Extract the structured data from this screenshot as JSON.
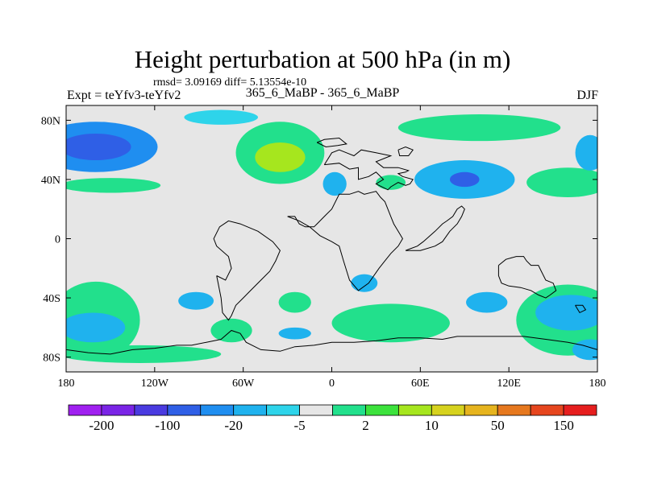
{
  "chart_data": {
    "type": "heatmap",
    "title": "Height perturbation at 500 hPa (in m)",
    "stats_text": "rmsd= 3.09169 diff= 5.13554e-10",
    "expt_label": "Expt = teYfv3-teYfv2",
    "subtitle": "365_6_MaBP - 365_6_MaBP",
    "season": "DJF",
    "xlim": [
      -180,
      180
    ],
    "ylim": [
      -90,
      90
    ],
    "x_ticks": [
      {
        "value": -180,
        "label": "180"
      },
      {
        "value": -120,
        "label": "120W"
      },
      {
        "value": -60,
        "label": "60W"
      },
      {
        "value": 0,
        "label": "0"
      },
      {
        "value": 60,
        "label": "60E"
      },
      {
        "value": 120,
        "label": "120E"
      },
      {
        "value": 180,
        "label": "180"
      }
    ],
    "y_ticks": [
      {
        "value": 80,
        "label": "80N"
      },
      {
        "value": 40,
        "label": "40N"
      },
      {
        "value": 0,
        "label": "0"
      },
      {
        "value": -40,
        "label": "40S"
      },
      {
        "value": -80,
        "label": "80S"
      }
    ],
    "colorbar": {
      "colors": [
        "#a020f0",
        "#7a24e6",
        "#4a3be0",
        "#2f5fe6",
        "#1f8ef0",
        "#1fb2ee",
        "#2ed4ea",
        "#e6e6e6",
        "#22e08c",
        "#3ce23c",
        "#a6e61e",
        "#d6d21e",
        "#e6b41e",
        "#e6781e",
        "#e6461e",
        "#e61e1e"
      ],
      "labels": [
        "-200",
        "-100",
        "-20",
        "-5",
        "2",
        "10",
        "50",
        "150"
      ]
    },
    "regions": [
      {
        "name": "north-pacific-low",
        "lon": -160,
        "lat": 62,
        "rlon": 42,
        "rlat": 17,
        "value": -12
      },
      {
        "name": "north-pacific-low-core",
        "lon": -160,
        "lat": 62,
        "rlon": 24,
        "rlat": 9,
        "value": -20
      },
      {
        "name": "north-pacific-band",
        "lon": -150,
        "lat": 36,
        "rlon": 34,
        "rlat": 5,
        "value": 4
      },
      {
        "name": "north-america-high",
        "lon": -35,
        "lat": 58,
        "rlon": 30,
        "rlat": 21,
        "value": 8
      },
      {
        "name": "north-america-high-core",
        "lon": -35,
        "lat": 55,
        "rlon": 17,
        "rlat": 10,
        "value": 20
      },
      {
        "name": "arctic-low",
        "lon": -75,
        "lat": 82,
        "rlon": 25,
        "rlat": 5,
        "value": -3
      },
      {
        "name": "eurasia-high",
        "lon": 100,
        "lat": 75,
        "rlon": 55,
        "rlat": 9,
        "value": 5
      },
      {
        "name": "asia-low",
        "lon": 90,
        "lat": 40,
        "rlon": 34,
        "rlat": 13,
        "value": -8
      },
      {
        "name": "asia-low-core",
        "lon": 90,
        "lat": 40,
        "rlon": 10,
        "rlat": 5,
        "value": -20
      },
      {
        "name": "europe-low",
        "lon": 2,
        "lat": 37,
        "rlon": 8,
        "rlat": 8,
        "value": -5
      },
      {
        "name": "europe-band",
        "lon": 40,
        "lat": 38,
        "rlon": 10,
        "rlat": 5,
        "value": 4
      },
      {
        "name": "west-pacific-band",
        "lon": 160,
        "lat": 38,
        "rlon": 28,
        "rlat": 10,
        "value": 4
      },
      {
        "name": "west-pacific-low",
        "lon": 175,
        "lat": 58,
        "rlon": 10,
        "rlat": 12,
        "value": -6
      },
      {
        "name": "south-pacific-band",
        "lon": -160,
        "lat": -55,
        "rlon": 30,
        "rlat": 26,
        "value": 4
      },
      {
        "name": "south-pacific-low",
        "lon": -162,
        "lat": -60,
        "rlon": 22,
        "rlat": 10,
        "value": -6
      },
      {
        "name": "sw-pacific-low",
        "lon": -92,
        "lat": -42,
        "rlon": 12,
        "rlat": 6,
        "value": -5
      },
      {
        "name": "south-america-band",
        "lon": -68,
        "lat": -62,
        "rlon": 14,
        "rlat": 8,
        "value": 4
      },
      {
        "name": "south-atlantic-high",
        "lon": -25,
        "lat": -43,
        "rlon": 11,
        "rlat": 7,
        "value": 4
      },
      {
        "name": "south-atlantic-low",
        "lon": -25,
        "lat": -64,
        "rlon": 11,
        "rlat": 4,
        "value": -6
      },
      {
        "name": "africa-low",
        "lon": 22,
        "lat": -30,
        "rlon": 9,
        "rlat": 6,
        "value": -5
      },
      {
        "name": "indian-ocean-band",
        "lon": 40,
        "lat": -57,
        "rlon": 40,
        "rlat": 13,
        "value": 5
      },
      {
        "name": "indian-ocean-low",
        "lon": 105,
        "lat": -43,
        "rlon": 14,
        "rlat": 7,
        "value": -5
      },
      {
        "name": "southern-ocean-band",
        "lon": 160,
        "lat": -55,
        "rlon": 35,
        "rlat": 24,
        "value": 4
      },
      {
        "name": "southern-ocean-low",
        "lon": 162,
        "lat": -50,
        "rlon": 24,
        "rlat": 12,
        "value": -8
      },
      {
        "name": "antarctic-band",
        "lon": -130,
        "lat": -78,
        "rlon": 55,
        "rlat": 6,
        "value": 4
      },
      {
        "name": "antarctic-low-east",
        "lon": 175,
        "lat": -75,
        "rlon": 12,
        "rlat": 7,
        "value": -5
      }
    ],
    "coastlines": [
      {
        "name": "eurasia-outline",
        "points": [
          [
            -5,
            50
          ],
          [
            5,
            51
          ],
          [
            12,
            47
          ],
          [
            18,
            48
          ],
          [
            18,
            40
          ],
          [
            25,
            42
          ],
          [
            30,
            45
          ],
          [
            35,
            40
          ],
          [
            30,
            37
          ],
          [
            38,
            33
          ],
          [
            40,
            35
          ],
          [
            45,
            38
          ],
          [
            50,
            36
          ],
          [
            53,
            37
          ],
          [
            55,
            40
          ],
          [
            48,
            42
          ],
          [
            45,
            44
          ],
          [
            50,
            45
          ],
          [
            52,
            46
          ],
          [
            45,
            48
          ],
          [
            35,
            48
          ],
          [
            30,
            52
          ],
          [
            40,
            56
          ],
          [
            30,
            58
          ],
          [
            20,
            60
          ],
          [
            15,
            56
          ],
          [
            10,
            58
          ],
          [
            5,
            60
          ],
          [
            0,
            58
          ],
          [
            -5,
            50
          ]
        ]
      },
      {
        "name": "north-africa-outline",
        "points": [
          [
            -30,
            15
          ],
          [
            -25,
            15
          ],
          [
            -22,
            10
          ],
          [
            -18,
            8
          ],
          [
            -12,
            8
          ],
          [
            -10,
            10
          ],
          [
            -5,
            15
          ],
          [
            0,
            20
          ],
          [
            5,
            30
          ],
          [
            12,
            30
          ],
          [
            18,
            32
          ],
          [
            22,
            30
          ],
          [
            30,
            32
          ],
          [
            33,
            28
          ],
          [
            36,
            25
          ],
          [
            40,
            15
          ],
          [
            42,
            10
          ],
          [
            45,
            5
          ],
          [
            48,
            0
          ],
          [
            45,
            -5
          ],
          [
            40,
            -10
          ],
          [
            36,
            -15
          ],
          [
            32,
            -20
          ],
          [
            25,
            -30
          ],
          [
            18,
            -35
          ],
          [
            12,
            -28
          ],
          [
            8,
            -15
          ],
          [
            5,
            -5
          ],
          [
            0,
            -2
          ],
          [
            -8,
            2
          ],
          [
            -15,
            8
          ],
          [
            -22,
            12
          ],
          [
            -30,
            15
          ]
        ]
      },
      {
        "name": "south-america-outline",
        "points": [
          [
            -78,
            -25
          ],
          [
            -72,
            -28
          ],
          [
            -68,
            -20
          ],
          [
            -70,
            -12
          ],
          [
            -78,
            -5
          ],
          [
            -80,
            0
          ],
          [
            -76,
            8
          ],
          [
            -70,
            12
          ],
          [
            -62,
            10
          ],
          [
            -50,
            5
          ],
          [
            -40,
            -2
          ],
          [
            -35,
            -8
          ],
          [
            -38,
            -15
          ],
          [
            -42,
            -22
          ],
          [
            -48,
            -28
          ],
          [
            -55,
            -35
          ],
          [
            -60,
            -40
          ],
          [
            -65,
            -45
          ],
          [
            -68,
            -52
          ],
          [
            -70,
            -55
          ],
          [
            -74,
            -50
          ],
          [
            -75,
            -40
          ],
          [
            -78,
            -25
          ]
        ]
      },
      {
        "name": "india-outline",
        "points": [
          [
            50,
            -8
          ],
          [
            58,
            -5
          ],
          [
            62,
            -2
          ],
          [
            70,
            5
          ],
          [
            75,
            10
          ],
          [
            78,
            12
          ],
          [
            82,
            15
          ],
          [
            85,
            20
          ],
          [
            88,
            22
          ],
          [
            90,
            20
          ],
          [
            88,
            15
          ],
          [
            85,
            10
          ],
          [
            80,
            5
          ],
          [
            75,
            -2
          ],
          [
            70,
            -5
          ],
          [
            60,
            -8
          ],
          [
            50,
            -8
          ]
        ]
      },
      {
        "name": "australia-outline",
        "points": [
          [
            113,
            -18
          ],
          [
            118,
            -14
          ],
          [
            125,
            -12
          ],
          [
            130,
            -12
          ],
          [
            132,
            -15
          ],
          [
            135,
            -18
          ],
          [
            140,
            -18
          ],
          [
            142,
            -22
          ],
          [
            145,
            -28
          ],
          [
            150,
            -30
          ],
          [
            152,
            -35
          ],
          [
            148,
            -38
          ],
          [
            145,
            -40
          ],
          [
            140,
            -38
          ],
          [
            135,
            -35
          ],
          [
            128,
            -33
          ],
          [
            120,
            -32
          ],
          [
            115,
            -30
          ],
          [
            113,
            -25
          ],
          [
            113,
            -18
          ]
        ]
      },
      {
        "name": "new-zealand-outline",
        "points": [
          [
            165,
            -45
          ],
          [
            170,
            -45
          ],
          [
            172,
            -48
          ],
          [
            168,
            -50
          ],
          [
            165,
            -45
          ]
        ]
      },
      {
        "name": "antarctica-outline",
        "points": [
          [
            -180,
            -75
          ],
          [
            -165,
            -77
          ],
          [
            -150,
            -78
          ],
          [
            -135,
            -75
          ],
          [
            -120,
            -74
          ],
          [
            -105,
            -72
          ],
          [
            -95,
            -72
          ],
          [
            -85,
            -70
          ],
          [
            -75,
            -68
          ],
          [
            -68,
            -62
          ],
          [
            -62,
            -64
          ],
          [
            -58,
            -70
          ],
          [
            -48,
            -75
          ],
          [
            -35,
            -76
          ],
          [
            -25,
            -73
          ],
          [
            -12,
            -72
          ],
          [
            0,
            -70
          ],
          [
            15,
            -70
          ],
          [
            30,
            -69
          ],
          [
            45,
            -67
          ],
          [
            60,
            -67
          ],
          [
            75,
            -68
          ],
          [
            85,
            -66
          ],
          [
            100,
            -66
          ],
          [
            115,
            -66
          ],
          [
            130,
            -66
          ],
          [
            145,
            -68
          ],
          [
            160,
            -70
          ],
          [
            170,
            -72
          ],
          [
            180,
            -75
          ]
        ]
      },
      {
        "name": "north-america-fragment",
        "points": [
          [
            -10,
            65
          ],
          [
            -5,
            67
          ],
          [
            5,
            68
          ],
          [
            10,
            64
          ],
          [
            4,
            63
          ],
          [
            -4,
            62
          ],
          [
            -10,
            65
          ]
        ]
      },
      {
        "name": "greenland-fragment",
        "points": [
          [
            45,
            60
          ],
          [
            50,
            62
          ],
          [
            55,
            60
          ],
          [
            52,
            56
          ],
          [
            46,
            56
          ],
          [
            45,
            60
          ]
        ]
      }
    ]
  }
}
